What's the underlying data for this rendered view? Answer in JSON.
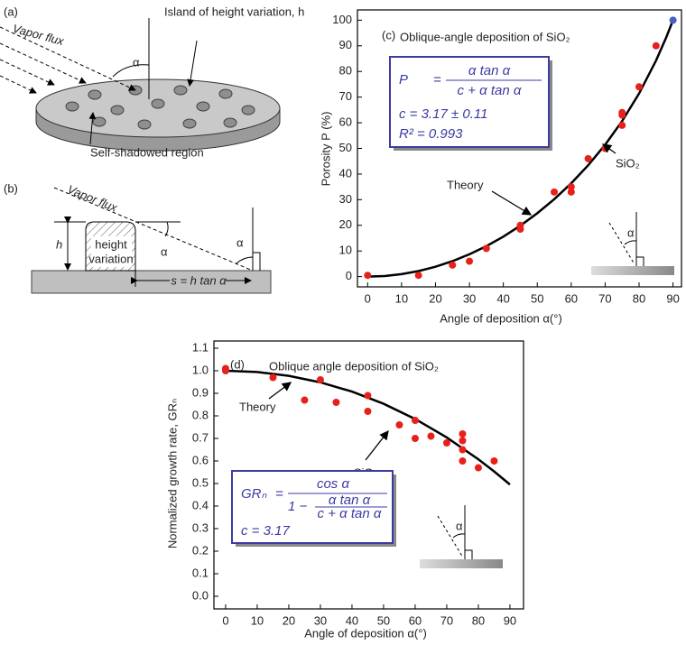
{
  "panels": {
    "a": "(a)",
    "b": "(b)"
  },
  "diagram_a": {
    "flux": "Vapor flux",
    "angle": "α",
    "island": "Island of height variation, h",
    "shadow": "Self-shadowed region"
  },
  "diagram_b": {
    "flux": "Vapor flux",
    "h": "h",
    "height": "height",
    "variation": "variation",
    "angle1": "α",
    "angle2": "α",
    "s": "s = h tan α"
  },
  "chart_data": [
    {
      "type": "scatter",
      "panel": "(c)",
      "title": "Oblique-angle deposition of SiO₂",
      "x_label": "Angle of deposition α(°)",
      "y_label": "Porosity  P  (%)",
      "xlim": [
        -3,
        92.5
      ],
      "ylim": [
        -4,
        104
      ],
      "xticks": [
        0,
        10,
        20,
        30,
        40,
        50,
        60,
        70,
        80,
        90
      ],
      "yticks": [
        0,
        10,
        20,
        30,
        40,
        50,
        60,
        70,
        80,
        90,
        100
      ],
      "formula": {
        "lhs": "P",
        "eq": "=",
        "num": "α tan α",
        "den": "c + α tan α",
        "c": "c  =  3.17 ± 0.11",
        "r2": "R² =  0.993"
      },
      "series": [
        {
          "name": "Theory",
          "mode": "line",
          "color": "#000000",
          "x": [
            0,
            5,
            10,
            15,
            20,
            25,
            30,
            35,
            40,
            45,
            50,
            55,
            60,
            65,
            70,
            75,
            80,
            85,
            88,
            90
          ],
          "values": [
            0,
            0.24,
            0.96,
            2.16,
            3.85,
            6.03,
            8.71,
            11.89,
            15.6,
            19.86,
            24.71,
            30.19,
            36.39,
            43.42,
            51.43,
            60.65,
            71.41,
            84.25,
            93.28,
            100
          ]
        },
        {
          "name": "SiO₂",
          "mode": "markers",
          "color": "#e8201a",
          "x": [
            0,
            15,
            25,
            30,
            35,
            45,
            45,
            55,
            60,
            60,
            65,
            70,
            75,
            75,
            75,
            80,
            85
          ],
          "values": [
            0.5,
            0.5,
            4.5,
            6,
            11,
            18.5,
            20,
            33,
            33,
            35,
            46,
            50,
            59,
            63,
            64,
            74,
            90
          ]
        },
        {
          "mode": "markers",
          "color": "#4a5fc1",
          "x": [
            90
          ],
          "values": [
            100
          ]
        }
      ]
    },
    {
      "type": "scatter",
      "panel": "(d)",
      "title": "Oblique angle deposition of SiO₂",
      "x_label": "Angle of deposition α(°)",
      "y_label": "Normalized growth rate, GRₙ",
      "xlim": [
        -3.7,
        94.3
      ],
      "ylim": [
        -0.056,
        1.132
      ],
      "xticks": [
        0,
        10,
        20,
        30,
        40,
        50,
        60,
        70,
        80,
        90
      ],
      "yticks": [
        {
          "value": 0,
          "label": "0.0"
        },
        0.1,
        0.2,
        0.3,
        0.4,
        0.5,
        0.6,
        0.7,
        0.8,
        0.9,
        {
          "value": 1,
          "label": "1.0"
        },
        1.1
      ],
      "formula": {
        "lhs": "GRₙ",
        "eq": "=",
        "num": "cos α",
        "one": "1 −",
        "num2": "α tan α",
        "den2": "c + α tan α",
        "c": "c  =  3.17"
      },
      "series": [
        {
          "name": "Theory",
          "mode": "line",
          "color": "#000000",
          "x": [
            0,
            10,
            20,
            30,
            40,
            50,
            60,
            70,
            80,
            85,
            90
          ],
          "values": [
            1,
            0.9944,
            0.9774,
            0.9486,
            0.9076,
            0.8537,
            0.7861,
            0.7042,
            0.6074,
            0.5534,
            0.4955
          ]
        },
        {
          "name": "SiO₂",
          "mode": "markers",
          "color": "#e8201a",
          "x": [
            0,
            0,
            15,
            25,
            30,
            35,
            45,
            45,
            55,
            60,
            60,
            65,
            70,
            75,
            75,
            75,
            75,
            80,
            85
          ],
          "values": [
            1,
            1.01,
            0.97,
            0.87,
            0.96,
            0.86,
            0.89,
            0.82,
            0.76,
            0.78,
            0.7,
            0.71,
            0.68,
            0.72,
            0.69,
            0.65,
            0.6,
            0.57,
            0.6
          ]
        }
      ]
    }
  ]
}
